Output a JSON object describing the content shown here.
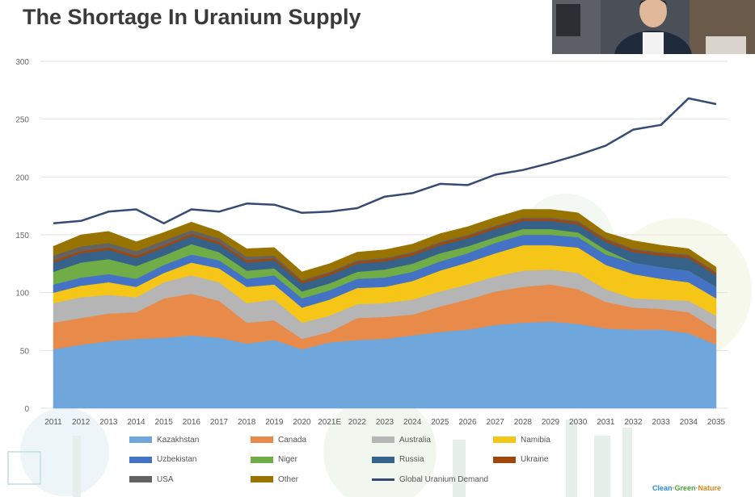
{
  "slide": {
    "title": "The Shortage In Uranium Supply",
    "brand": {
      "parts": [
        "Clean",
        "·",
        "Green",
        "·",
        "Nature"
      ],
      "colors": [
        "#2a8ad8",
        "#888888",
        "#4aa83a",
        "#888888",
        "#e08a1e"
      ]
    }
  },
  "webcam": {
    "icon": "presenter-webcam"
  },
  "chart_data": {
    "type": "area",
    "stacked": true,
    "title": "",
    "xlabel": "",
    "ylabel": "",
    "ylim": [
      0,
      300
    ],
    "yticks": [
      0,
      50,
      100,
      150,
      200,
      250,
      300
    ],
    "grid": true,
    "legend_position": "bottom",
    "categories": [
      "2011",
      "2012",
      "2013",
      "2014",
      "2015",
      "2016",
      "2017",
      "2018",
      "2019",
      "2020",
      "2021E",
      "2022",
      "2023",
      "2024",
      "2025",
      "2026",
      "2027",
      "2028",
      "2029",
      "2030",
      "2031",
      "2032",
      "2033",
      "2034",
      "2035"
    ],
    "series": [
      {
        "name": "Kazakhstan",
        "color": "#6fa6dc",
        "values": [
          51,
          55,
          58,
          60,
          61,
          63,
          61,
          56,
          59,
          51,
          57,
          59,
          60,
          63,
          66,
          68,
          72,
          74,
          75,
          73,
          69,
          68,
          68,
          65,
          55
        ]
      },
      {
        "name": "Canada",
        "color": "#e88a4a",
        "values": [
          23,
          23,
          24,
          23,
          34,
          36,
          32,
          18,
          17,
          9,
          9,
          19,
          19,
          18,
          22,
          26,
          29,
          31,
          32,
          30,
          23,
          19,
          18,
          18,
          13
        ]
      },
      {
        "name": "Australia",
        "color": "#b5b5b5",
        "values": [
          17,
          18,
          16,
          13,
          14,
          16,
          16,
          17,
          18,
          14,
          14,
          12,
          12,
          13,
          13,
          13,
          13,
          14,
          13,
          14,
          11,
          8,
          8,
          10,
          12
        ]
      },
      {
        "name": "Namibia",
        "color": "#f5c518",
        "values": [
          9,
          10,
          11,
          9,
          8,
          11,
          12,
          14,
          13,
          13,
          14,
          14,
          14,
          16,
          18,
          19,
          20,
          22,
          21,
          22,
          21,
          21,
          18,
          16,
          15
        ]
      },
      {
        "name": "Uzbekistan",
        "color": "#4472c4",
        "values": [
          7,
          7,
          7,
          7,
          7,
          7,
          7,
          7,
          8,
          8,
          8,
          8,
          8,
          8,
          8,
          8,
          9,
          9,
          9,
          9,
          9,
          10,
          10,
          10,
          10
        ]
      },
      {
        "name": "Niger",
        "color": "#70ad47",
        "values": [
          11,
          13,
          13,
          11,
          8,
          9,
          7,
          7,
          6,
          6,
          6,
          6,
          7,
          7,
          7,
          6,
          5,
          5,
          5,
          4,
          4,
          0,
          0,
          0,
          0
        ]
      },
      {
        "name": "Russia",
        "color": "#36628a",
        "values": [
          8,
          8,
          8,
          7,
          7,
          7,
          7,
          7,
          7,
          7,
          7,
          7,
          7,
          7,
          7,
          7,
          7,
          7,
          7,
          7,
          7,
          9,
          10,
          11,
          10
        ]
      },
      {
        "name": "Ukraine",
        "color": "#9e480e",
        "values": [
          2,
          2,
          2,
          2,
          2,
          2,
          2,
          2,
          2,
          2,
          2,
          2,
          2,
          2,
          2,
          2,
          2,
          2,
          2,
          2,
          2,
          2,
          2,
          2,
          2
        ]
      },
      {
        "name": "USA",
        "color": "#636363",
        "values": [
          4,
          4,
          4,
          4,
          4,
          3,
          3,
          3,
          2,
          1,
          1,
          1,
          1,
          1,
          1,
          1,
          1,
          1,
          1,
          1,
          1,
          1,
          1,
          1,
          1
        ]
      },
      {
        "name": "Other",
        "color": "#997300",
        "values": [
          8,
          10,
          10,
          8,
          7,
          7,
          6,
          7,
          7,
          7,
          7,
          7,
          7,
          7,
          7,
          7,
          7,
          7,
          7,
          7,
          5,
          7,
          6,
          5,
          4
        ]
      },
      {
        "name": "Global Uranium Demand",
        "type": "line",
        "color": "#364a73",
        "values": [
          160,
          162,
          170,
          172,
          160,
          172,
          170,
          177,
          176,
          169,
          170,
          173,
          183,
          186,
          194,
          193,
          202,
          206,
          212,
          219,
          227,
          241,
          245,
          268,
          263
        ]
      }
    ]
  }
}
